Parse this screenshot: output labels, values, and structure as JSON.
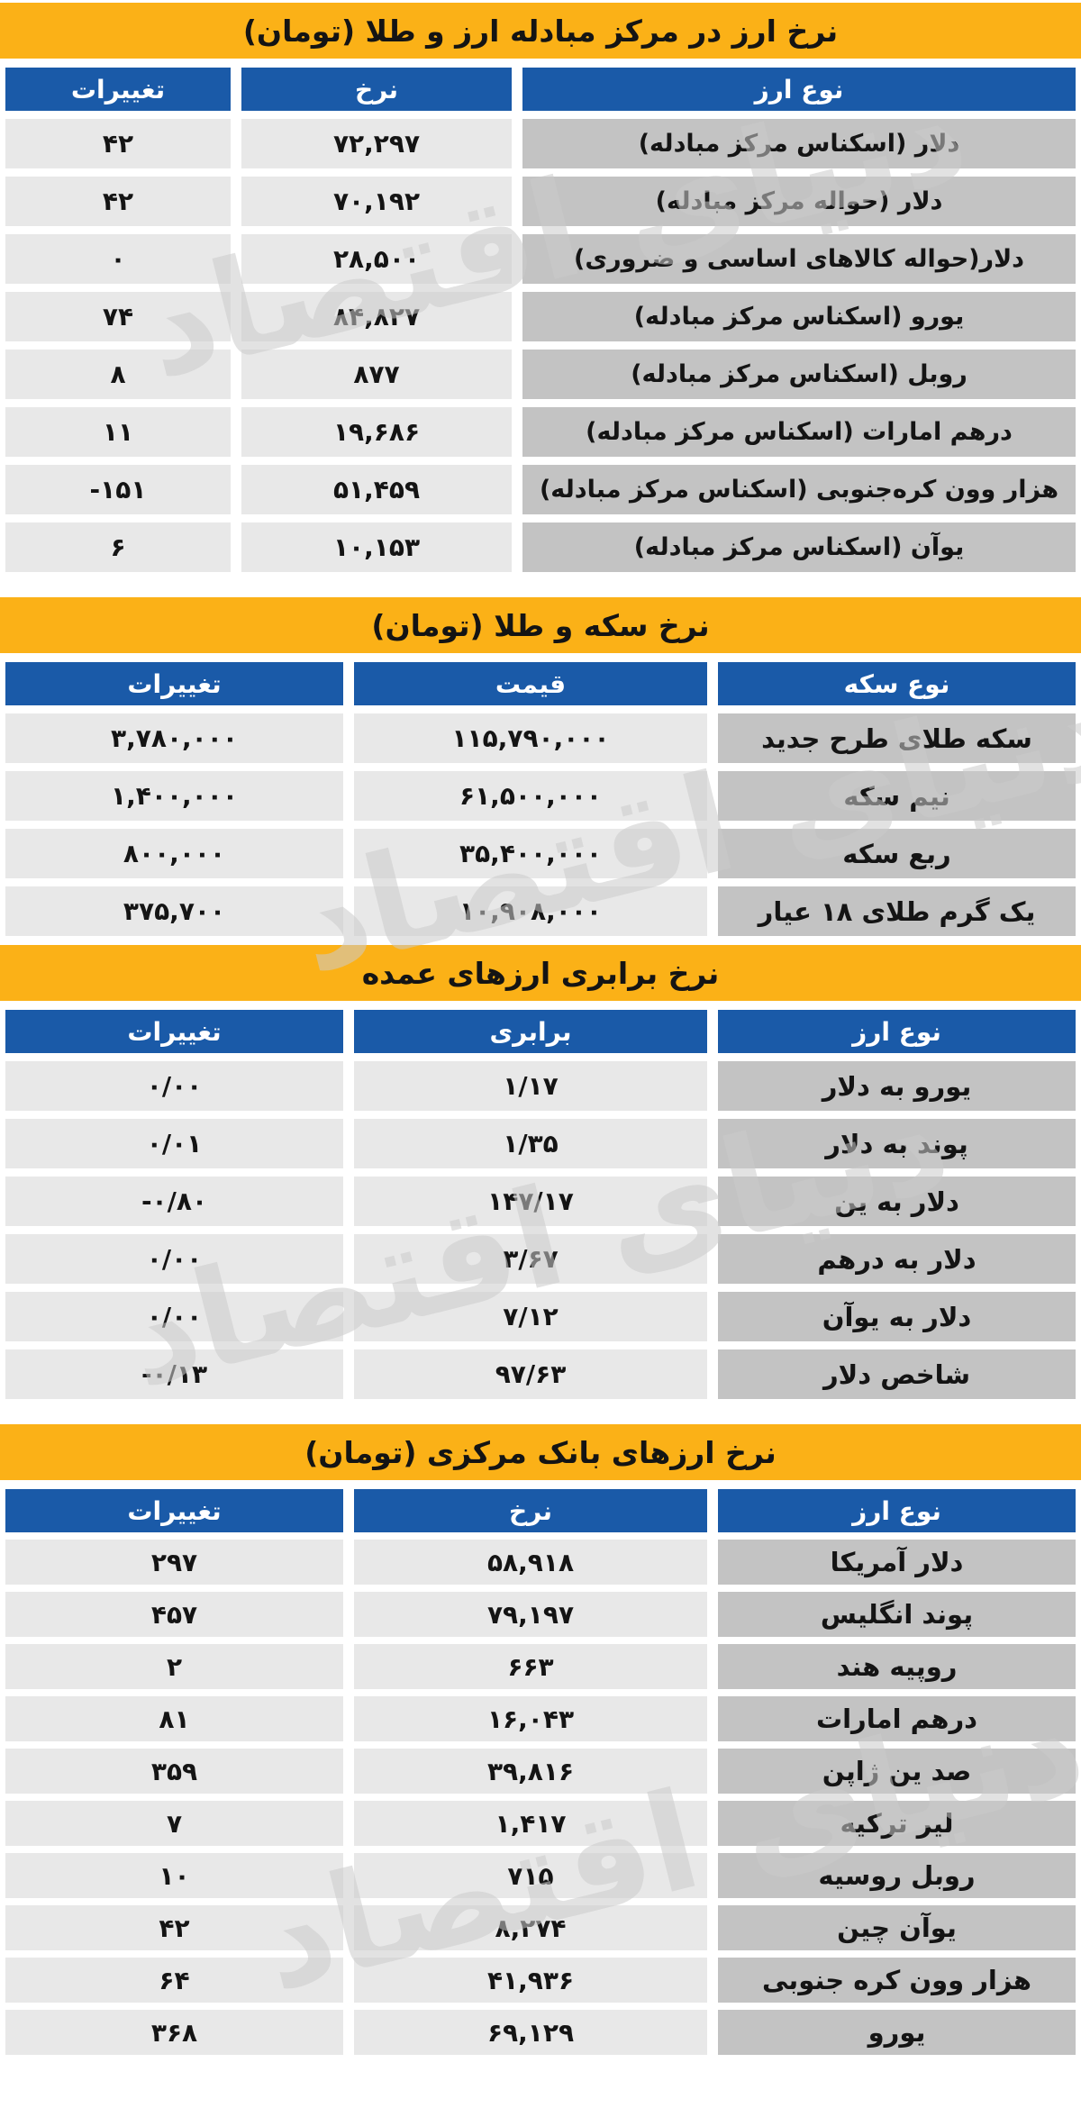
{
  "page": {
    "watermark_text": "دنیای اقتصاد",
    "unit_note": "تومان"
  },
  "colors": {
    "yellow": "#fbb117",
    "blue": "#1a5aa8",
    "name-gray": "#c3c3c3",
    "value-gray": "#e8e8e8",
    "text-dark": "#141414",
    "watermark": "#cccccc"
  },
  "tables": [
    {
      "id": "exchange-center",
      "title": "نرخ ارز در مرکز مبادله ارز و طلا (تومان)",
      "columns": {
        "change": "تغییرات",
        "value": "نرخ",
        "name": "نوع ارز"
      },
      "rows": [
        {
          "change": "۴۲",
          "value": "۷۲,۲۹۷",
          "name": "دلار (اسکناس مرکز مبادله)"
        },
        {
          "change": "۴۲",
          "value": "۷۰,۱۹۲",
          "name": "دلار (حواله مرکز مبادله)"
        },
        {
          "change": "۰",
          "value": "۲۸,۵۰۰",
          "name": "دلار(حواله کالاهای اساسی و ضروری)"
        },
        {
          "change": "۷۴",
          "value": "۸۴,۸۲۷",
          "name": "یورو (اسکناس مرکز مبادله)"
        },
        {
          "change": "۸",
          "value": "۸۷۷",
          "name": "روبل (اسکناس مرکز مبادله)"
        },
        {
          "change": "۱۱",
          "value": "۱۹,۶۸۶",
          "name": "درهم امارات (اسکناس مرکز مبادله)"
        },
        {
          "change": "-۱۵۱",
          "value": "۵۱,۴۵۹",
          "name": "هزار وون کره‌جنوبی (اسکناس مرکز مبادله)"
        },
        {
          "change": "۶",
          "value": "۱۰,۱۵۳",
          "name": "یوآن (اسکناس مرکز مبادله)"
        }
      ]
    },
    {
      "id": "coins-gold",
      "title": "نرخ سکه و طلا (تومان)",
      "columns": {
        "change": "تغییرات",
        "value": "قیمت",
        "name": "نوع سکه"
      },
      "rows": [
        {
          "change": "۳,۷۸۰,۰۰۰",
          "value": "۱۱۵,۷۹۰,۰۰۰",
          "name": "سکه طلای طرح جدید"
        },
        {
          "change": "۱,۴۰۰,۰۰۰",
          "value": "۶۱,۵۰۰,۰۰۰",
          "name": "نیم سکه"
        },
        {
          "change": "۸۰۰,۰۰۰",
          "value": "۳۵,۴۰۰,۰۰۰",
          "name": "ربع سکه"
        },
        {
          "change": "۳۷۵,۷۰۰",
          "value": "۱۰,۹۰۸,۰۰۰",
          "name": "یک گرم طلای ۱۸ عیار"
        }
      ]
    },
    {
      "id": "major-parity",
      "title": "نرخ برابری ارزهای عمده",
      "columns": {
        "change": "تغییرات",
        "value": "برابری",
        "name": "نوع ارز"
      },
      "rows": [
        {
          "change": "۰/۰۰",
          "value": "۱/۱۷",
          "name": "یورو به دلار"
        },
        {
          "change": "۰/۰۱",
          "value": "۱/۳۵",
          "name": "پوند به دلار"
        },
        {
          "change": "-۰/۸۰",
          "value": "۱۴۷/۱۷",
          "name": "دلار به ین"
        },
        {
          "change": "۰/۰۰",
          "value": "۳/۶۷",
          "name": "دلار به درهم"
        },
        {
          "change": "۰/۰۰",
          "value": "۷/۱۲",
          "name": "دلار به یوآن"
        },
        {
          "change": "-۰/۱۳",
          "value": "۹۷/۶۳",
          "name": "شاخص دلار"
        }
      ]
    },
    {
      "id": "central-bank",
      "title": "نرخ ارزهای بانک مرکزی (تومان)",
      "columns": {
        "change": "تغییرات",
        "value": "نرخ",
        "name": "نوع ارز"
      },
      "rows": [
        {
          "change": "۲۹۷",
          "value": "۵۸,۹۱۸",
          "name": "دلار آمریکا"
        },
        {
          "change": "۴۵۷",
          "value": "۷۹,۱۹۷",
          "name": "پوند انگلیس"
        },
        {
          "change": "۲",
          "value": "۶۶۳",
          "name": "روپیه هند"
        },
        {
          "change": "۸۱",
          "value": "۱۶,۰۴۳",
          "name": "درهم امارات"
        },
        {
          "change": "۳۵۹",
          "value": "۳۹,۸۱۶",
          "name": "صد ین ژاپن"
        },
        {
          "change": "۷",
          "value": "۱,۴۱۷",
          "name": "لیر ترکیه"
        },
        {
          "change": "۱۰",
          "value": "۷۱۵",
          "name": "روبل روسیه"
        },
        {
          "change": "۴۲",
          "value": "۸,۲۷۴",
          "name": "یوآن چین"
        },
        {
          "change": "۶۴",
          "value": "۴۱,۹۳۶",
          "name": "هزار وون کره جنوبی"
        },
        {
          "change": "۳۶۸",
          "value": "۶۹,۱۲۹",
          "name": "یورو"
        }
      ]
    }
  ]
}
